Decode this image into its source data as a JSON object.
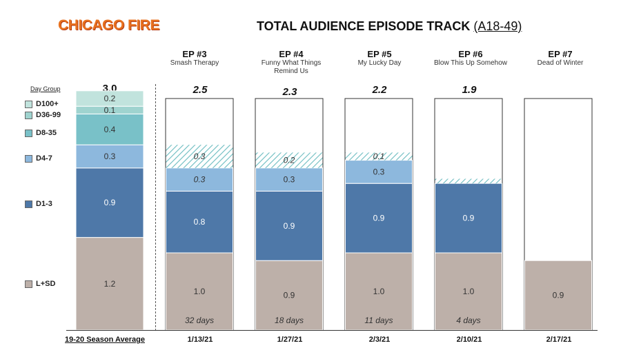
{
  "logo_text": "CHICAGO FIRE",
  "title": {
    "main": "TOTAL AUDIENCE EPISODE TRACK ",
    "demo": "(A18-49)"
  },
  "day_group_label": "Day Group",
  "season_average_label": "19-20 Season Average",
  "colors": {
    "L+SD": "#bdb0a9",
    "D1-3": "#4e78a8",
    "D4-7": "#8db8dd",
    "D8-35": "#79c1c8",
    "D36-99": "#9fd3cf",
    "D100+": "#c1e3dd",
    "hatch": "#6bbcc0"
  },
  "legend": [
    {
      "label": "D100+",
      "color": "#c1e3dd"
    },
    {
      "label": "D36-99",
      "color": "#9fd3cf"
    },
    {
      "label": "D8-35",
      "color": "#79c1c8"
    },
    {
      "label": "D4-7",
      "color": "#8db8dd"
    },
    {
      "label": "D1-3",
      "color": "#4e78a8"
    },
    {
      "label": "L+SD",
      "color": "#bdb0a9"
    }
  ],
  "chart_data": {
    "type": "bar",
    "stacked": true,
    "title": "TOTAL AUDIENCE EPISODE TRACK (A18-49)",
    "categories": [
      "19-20 Season Average",
      "EP #3",
      "EP #4",
      "EP #5",
      "EP #6",
      "EP #7"
    ],
    "episode_titles": [
      "",
      "Smash Therapy",
      "Funny What Things Remind Us",
      "My Lucky Day",
      "Blow This Up Somehow",
      "Dead of Winter"
    ],
    "dates": [
      "",
      "1/13/21",
      "1/27/21",
      "2/3/21",
      "2/10/21",
      "2/17/21"
    ],
    "totals": [
      "3.0",
      "2.5",
      "2.3",
      "2.2",
      "1.9",
      ""
    ],
    "days_since_air": [
      "",
      "32 days",
      "18 days",
      "11 days",
      "4 days",
      ""
    ],
    "ylim": [
      0,
      3.0
    ],
    "bars": [
      {
        "segments": [
          {
            "name": "L+SD",
            "value": 1.2,
            "label": "1.2"
          },
          {
            "name": "D1-3",
            "value": 0.9,
            "label": "0.9"
          },
          {
            "name": "D4-7",
            "value": 0.3,
            "label": "0.3"
          },
          {
            "name": "D8-35",
            "value": 0.4,
            "label": "0.4"
          },
          {
            "name": "D36-99",
            "value": 0.1,
            "label": "0.1"
          },
          {
            "name": "D100+",
            "value": 0.2,
            "label": "0.2"
          }
        ]
      },
      {
        "segments": [
          {
            "name": "L+SD",
            "value": 1.0,
            "label": "1.0"
          },
          {
            "name": "D1-3",
            "value": 0.8,
            "label": "0.8"
          },
          {
            "name": "D4-7",
            "value": 0.3,
            "label": "0.3",
            "italic": true
          },
          {
            "name": "D8-35",
            "value": 0.3,
            "label": "0.3",
            "hatched": true
          }
        ]
      },
      {
        "segments": [
          {
            "name": "L+SD",
            "value": 0.9,
            "label": "0.9"
          },
          {
            "name": "D1-3",
            "value": 0.9,
            "label": "0.9"
          },
          {
            "name": "D4-7",
            "value": 0.3,
            "label": "0.3"
          },
          {
            "name": "D8-35",
            "value": 0.2,
            "label": "0.2",
            "hatched": true
          }
        ]
      },
      {
        "segments": [
          {
            "name": "L+SD",
            "value": 1.0,
            "label": "1.0"
          },
          {
            "name": "D1-3",
            "value": 0.9,
            "label": "0.9"
          },
          {
            "name": "D4-7",
            "value": 0.3,
            "label": "0.3"
          },
          {
            "name": "D8-35",
            "value": 0.1,
            "label": "0.1",
            "hatched": true
          }
        ]
      },
      {
        "segments": [
          {
            "name": "L+SD",
            "value": 1.0,
            "label": "1.0"
          },
          {
            "name": "D1-3",
            "value": 0.9,
            "label": "0.9"
          },
          {
            "name": "D4-7",
            "value": 0.06,
            "label": "",
            "hatched": true
          }
        ]
      },
      {
        "segments": [
          {
            "name": "L+SD",
            "value": 0.9,
            "label": "0.9"
          }
        ]
      }
    ]
  }
}
